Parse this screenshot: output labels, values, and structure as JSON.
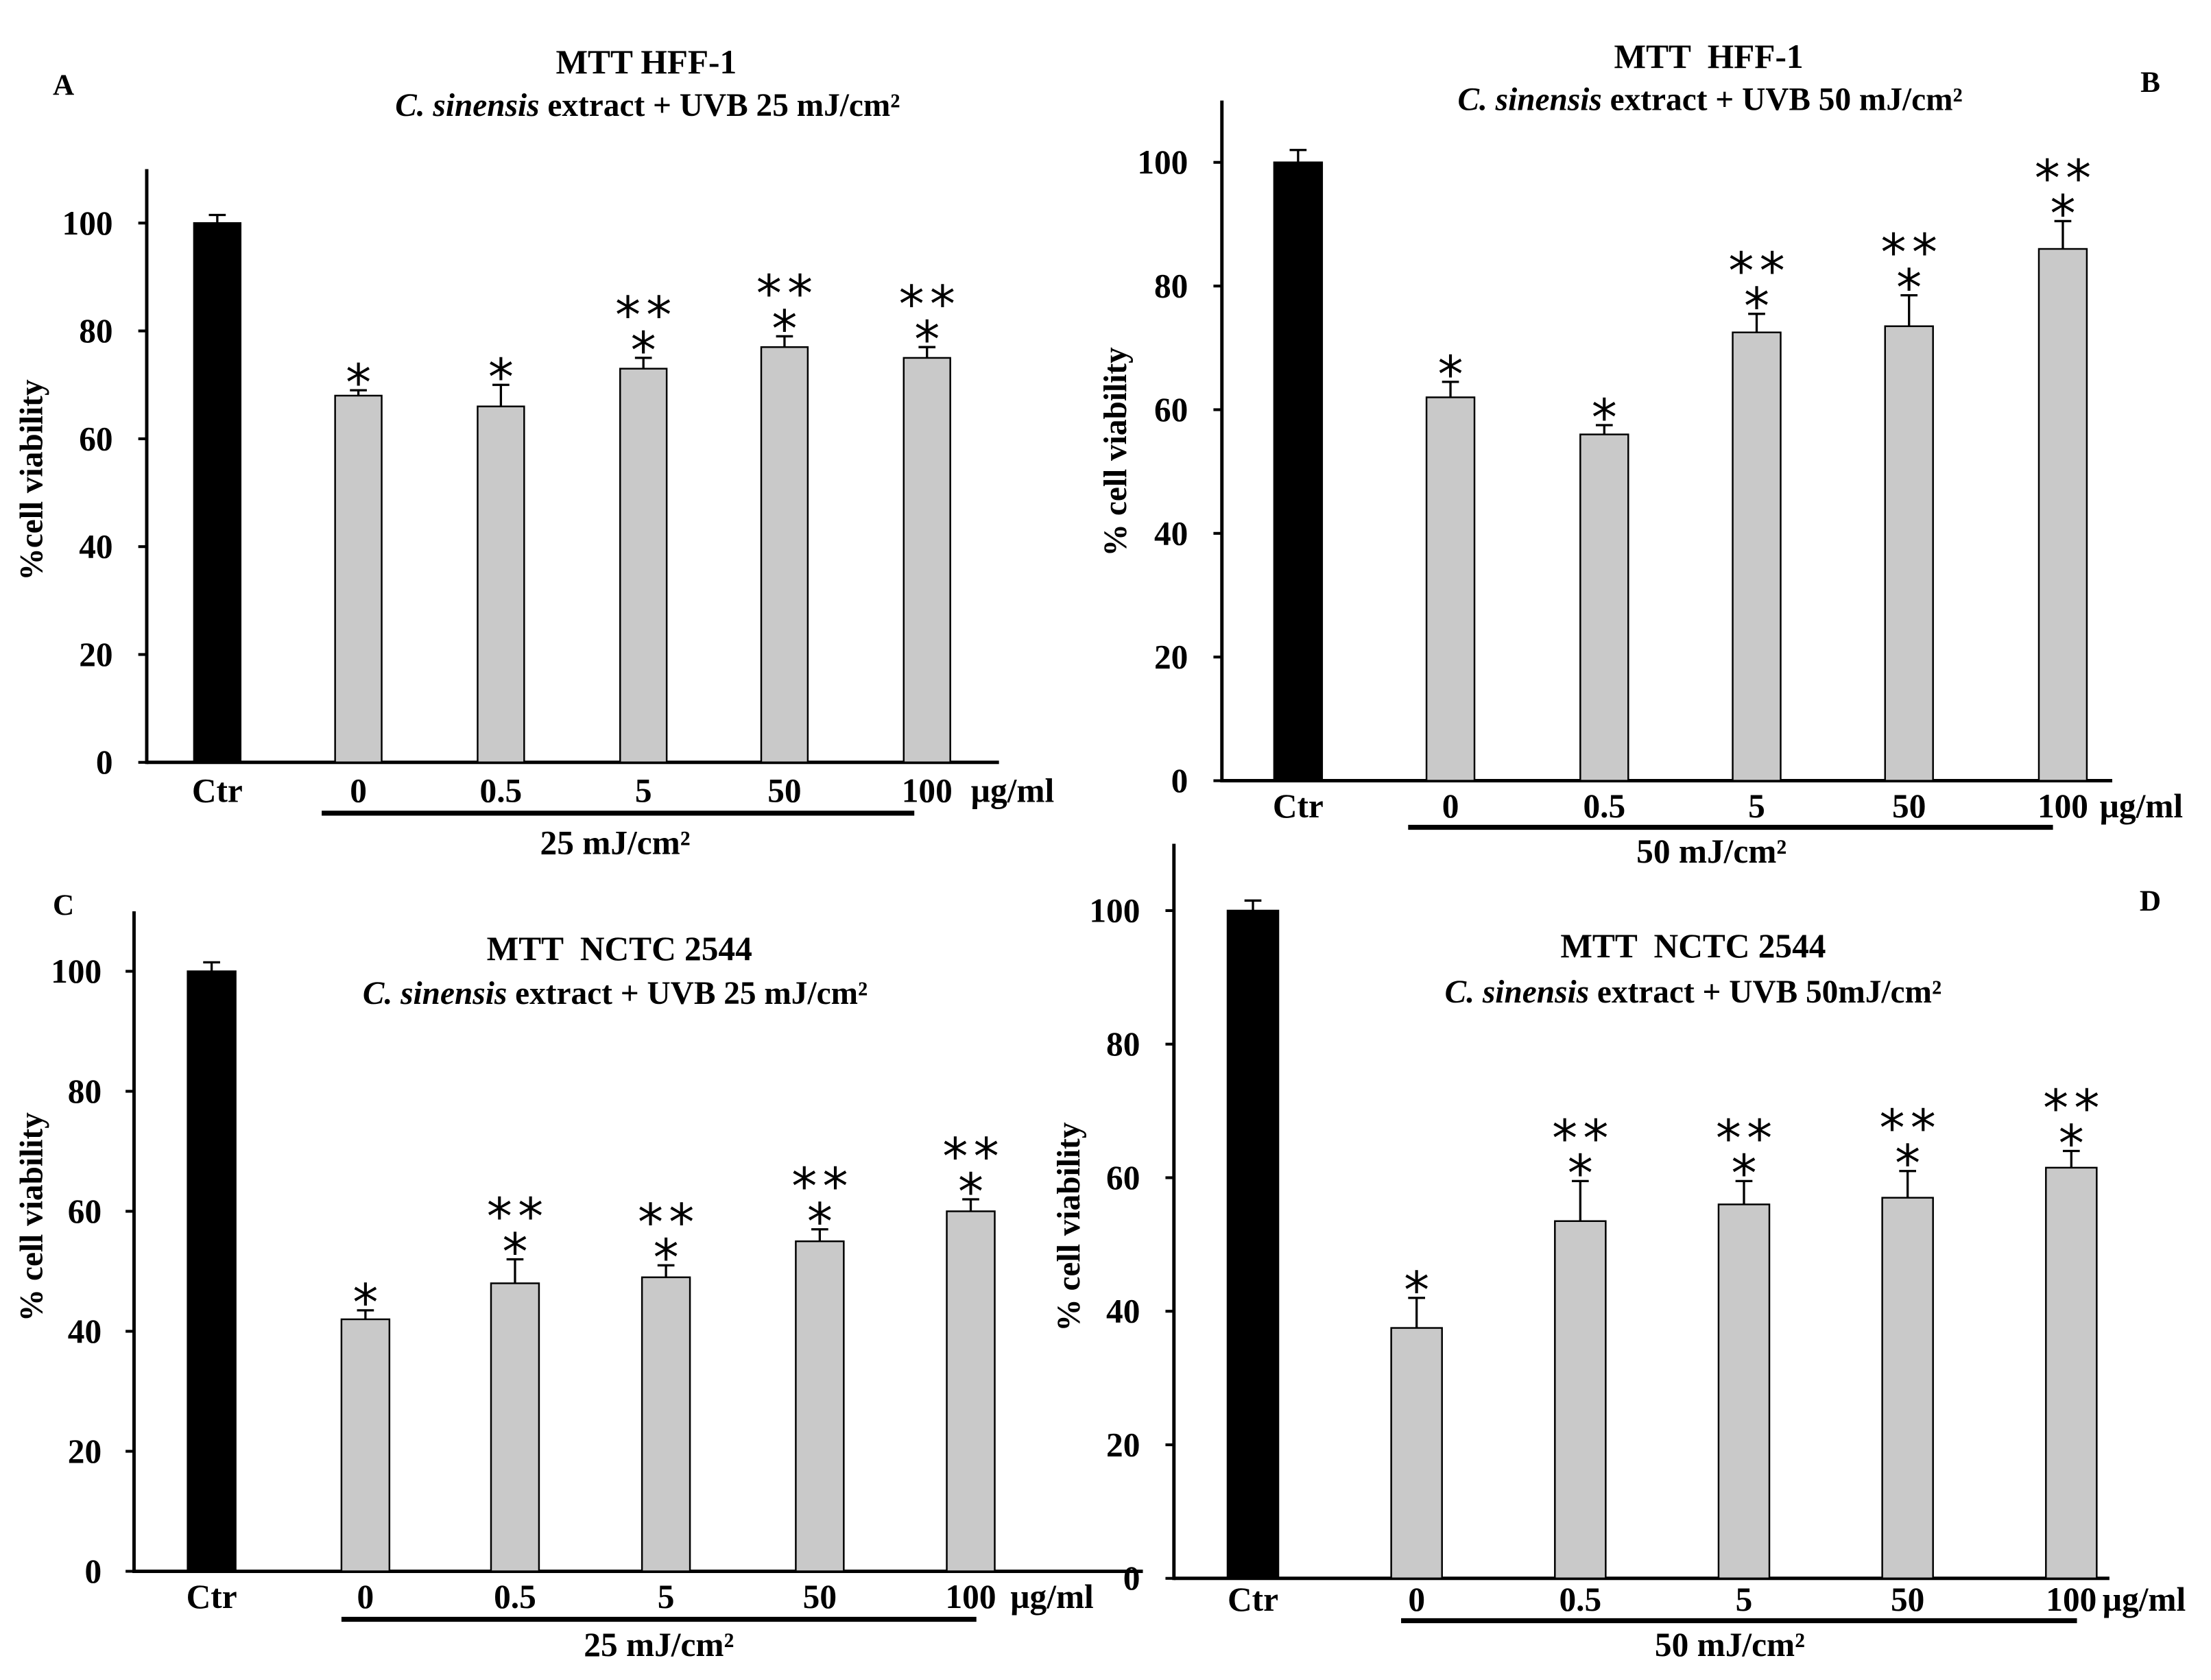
{
  "chart_data": [
    {
      "type": "bar",
      "panel_label": "A",
      "title": "MTT HFF-1",
      "subtitle_italic": "C. sinensis",
      "subtitle_rest": " extract + UVB 25 mJ/cm²",
      "ylabel": "%cell viability",
      "categories": [
        "Ctr",
        "0",
        "0.5",
        "5",
        "50",
        "100"
      ],
      "unit_label": "µg/ml",
      "group_label": "25 mJ/cm²",
      "values": [
        100,
        68,
        66,
        73,
        77,
        75
      ],
      "errors": [
        1.5,
        1,
        4,
        2,
        2,
        2
      ],
      "significance": [
        [],
        [
          "*"
        ],
        [
          "*"
        ],
        [
          "**",
          "*"
        ],
        [
          "**",
          "*"
        ],
        [
          "**",
          "*"
        ]
      ],
      "ylim": [
        0,
        110
      ],
      "yticks": [
        0,
        20,
        40,
        60,
        80,
        100
      ],
      "colors": {
        "control": "#000000",
        "treated": "#c9c9c9"
      }
    },
    {
      "type": "bar",
      "panel_label": "B",
      "title": "MTT  HFF-1",
      "subtitle_italic": "C. sinensis",
      "subtitle_rest": " extract + UVB 50 mJ/cm²",
      "ylabel": "% cell viability",
      "categories": [
        "Ctr",
        "0",
        "0.5",
        "5",
        "50",
        "100"
      ],
      "unit_label": "µg/ml",
      "group_label": "50 mJ/cm²",
      "values": [
        100,
        62,
        56,
        72.5,
        73.5,
        86
      ],
      "errors": [
        2,
        2.5,
        1.5,
        3,
        5,
        4.5
      ],
      "significance": [
        [],
        [
          "*"
        ],
        [
          "*"
        ],
        [
          "**",
          "*"
        ],
        [
          "**",
          "*"
        ],
        [
          "**",
          "*"
        ]
      ],
      "ylim": [
        0,
        110
      ],
      "yticks": [
        0,
        20,
        40,
        60,
        80,
        100
      ],
      "colors": {
        "control": "#000000",
        "treated": "#c9c9c9"
      }
    },
    {
      "type": "bar",
      "panel_label": "C",
      "title": "MTT  NCTC 2544",
      "subtitle_italic": "C. sinensis",
      "subtitle_rest": " extract + UVB 25 mJ/cm²",
      "ylabel": "% cell viability",
      "categories": [
        "Ctr",
        "0",
        "0.5",
        "5",
        "50",
        "100"
      ],
      "unit_label": "µg/ml",
      "group_label": "25 mJ/cm²",
      "values": [
        100,
        42,
        48,
        49,
        55,
        60
      ],
      "errors": [
        1.5,
        1.5,
        4,
        2,
        2,
        2
      ],
      "significance": [
        [],
        [
          "*"
        ],
        [
          "**",
          "*"
        ],
        [
          "**",
          "*"
        ],
        [
          "**",
          "*"
        ],
        [
          "**",
          "*"
        ]
      ],
      "ylim": [
        0,
        110
      ],
      "yticks": [
        0,
        20,
        40,
        60,
        80,
        100
      ],
      "colors": {
        "control": "#000000",
        "treated": "#c9c9c9"
      }
    },
    {
      "type": "bar",
      "panel_label": "D",
      "title": "MTT  NCTC 2544",
      "subtitle_italic": "C. sinensis",
      "subtitle_rest": " extract + UVB 50mJ/cm²",
      "ylabel": "% cell viability",
      "categories": [
        "Ctr",
        "0",
        "0.5",
        "5",
        "50",
        "100"
      ],
      "unit_label": "µg/ml",
      "group_label": "50 mJ/cm²",
      "values": [
        100,
        37.5,
        53.5,
        56,
        57,
        61.5
      ],
      "errors": [
        1.5,
        4.5,
        6,
        3.5,
        4,
        2.5
      ],
      "significance": [
        [],
        [
          "*"
        ],
        [
          "**",
          "*"
        ],
        [
          "**",
          "*"
        ],
        [
          "**",
          "*"
        ],
        [
          "**",
          "*"
        ]
      ],
      "ylim": [
        0,
        110
      ],
      "yticks": [
        0,
        20,
        40,
        60,
        80,
        100
      ],
      "colors": {
        "control": "#000000",
        "treated": "#c9c9c9"
      }
    }
  ]
}
